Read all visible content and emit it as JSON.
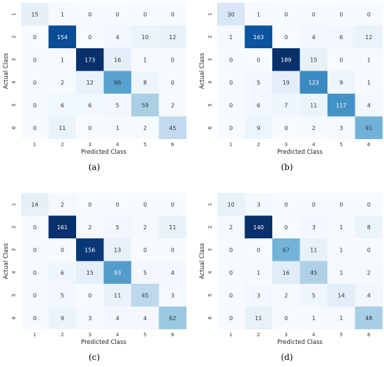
{
  "chart_data": [
    {
      "type": "heatmap",
      "caption": "(a)",
      "xlabel": "Predicted Class",
      "ylabel": "Actual Class",
      "x_ticks": [
        "1",
        "2",
        "3",
        "4",
        "5",
        "6"
      ],
      "y_ticks": [
        "1",
        "2",
        "3",
        "4",
        "5",
        "6"
      ],
      "matrix": [
        [
          15,
          1,
          0,
          0,
          0,
          0
        ],
        [
          0,
          154,
          0,
          4,
          10,
          12
        ],
        [
          0,
          1,
          173,
          16,
          1,
          0
        ],
        [
          0,
          2,
          12,
          96,
          8,
          0
        ],
        [
          0,
          6,
          6,
          5,
          59,
          2
        ],
        [
          0,
          11,
          0,
          1,
          2,
          45
        ]
      ]
    },
    {
      "type": "heatmap",
      "caption": "(b)",
      "xlabel": "Predicted Class",
      "ylabel": "Actual Class",
      "x_ticks": [
        "1",
        "2",
        "3",
        "4",
        "5",
        "6"
      ],
      "y_ticks": [
        "1",
        "2",
        "3",
        "4",
        "5",
        "6"
      ],
      "matrix": [
        [
          30,
          1,
          0,
          0,
          0,
          0
        ],
        [
          1,
          163,
          0,
          4,
          6,
          12
        ],
        [
          0,
          0,
          189,
          15,
          0,
          1
        ],
        [
          0,
          5,
          19,
          123,
          9,
          1
        ],
        [
          0,
          6,
          7,
          11,
          117,
          4
        ],
        [
          0,
          9,
          0,
          2,
          3,
          91
        ]
      ]
    },
    {
      "type": "heatmap",
      "caption": "(c)",
      "xlabel": "Predicted Class",
      "ylabel": "Actual Class",
      "x_ticks": [
        "1",
        "2",
        "3",
        "4",
        "5",
        "6"
      ],
      "y_ticks": [
        "1",
        "2",
        "3",
        "4",
        "5",
        "6"
      ],
      "matrix": [
        [
          14,
          2,
          0,
          0,
          0,
          0
        ],
        [
          0,
          161,
          2,
          5,
          2,
          11
        ],
        [
          0,
          0,
          156,
          13,
          0,
          0
        ],
        [
          0,
          6,
          15,
          93,
          5,
          4
        ],
        [
          0,
          5,
          0,
          11,
          45,
          3
        ],
        [
          0,
          9,
          3,
          4,
          4,
          62
        ]
      ]
    },
    {
      "type": "heatmap",
      "caption": "(d)",
      "xlabel": "Predicted Class",
      "ylabel": "Actual Class",
      "x_ticks": [
        "1",
        "2",
        "3",
        "4",
        "5",
        "6"
      ],
      "y_ticks": [
        "1",
        "2",
        "3",
        "4",
        "5",
        "6"
      ],
      "matrix": [
        [
          10,
          3,
          0,
          0,
          0,
          0
        ],
        [
          2,
          140,
          0,
          3,
          1,
          8
        ],
        [
          0,
          0,
          67,
          11,
          1,
          0
        ],
        [
          0,
          1,
          16,
          45,
          1,
          2
        ],
        [
          0,
          3,
          2,
          5,
          14,
          4
        ],
        [
          0,
          11,
          0,
          1,
          1,
          48
        ]
      ]
    }
  ]
}
